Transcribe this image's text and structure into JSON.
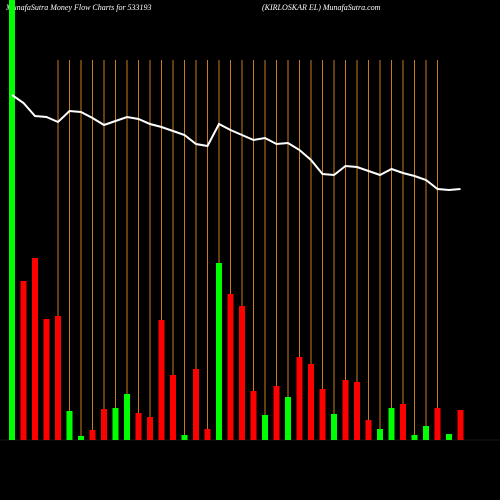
{
  "chart_data": {
    "type": "bar",
    "title": "MunafaSutra  Money Flow  Charts for 533193",
    "subtitle": "(KIRLOSKAR EL) MunafaSutra.com",
    "values": [
      440,
      159,
      182,
      121,
      124,
      29,
      4,
      10,
      31,
      32,
      46,
      27,
      23,
      120,
      65,
      5,
      71,
      11,
      177,
      146,
      134,
      49,
      25,
      54,
      43,
      83,
      76,
      51,
      26,
      60,
      58,
      20,
      11,
      32,
      36,
      5,
      14,
      32,
      6,
      30
    ],
    "colors": [
      "#00ff00",
      "#ff0000",
      "#ff0000",
      "#ff0000",
      "#ff0000",
      "#00ff00",
      "#00ff00",
      "#ff0000",
      "#ff0000",
      "#00ff00",
      "#00ff00",
      "#ff0000",
      "#ff0000",
      "#ff0000",
      "#ff0000",
      "#00ff00",
      "#ff0000",
      "#ff0000",
      "#00ff00",
      "#ff0000",
      "#ff0000",
      "#ff0000",
      "#00ff00",
      "#ff0000",
      "#00ff00",
      "#ff0000",
      "#ff0000",
      "#ff0000",
      "#00ff00",
      "#ff0000",
      "#ff0000",
      "#ff0000",
      "#00ff00",
      "#00ff00",
      "#ff0000",
      "#00ff00",
      "#00ff00",
      "#ff0000",
      "#00ff00",
      "#ff0000"
    ],
    "line_values": [
      345,
      337,
      324,
      323,
      318,
      329,
      328,
      322,
      315,
      319,
      323,
      321,
      316,
      313,
      309,
      305,
      296,
      294,
      316,
      310,
      305,
      300,
      302,
      296,
      297,
      290,
      280,
      266,
      265,
      274,
      273,
      269,
      265,
      271,
      267,
      264,
      260,
      251,
      250,
      251
    ],
    "line_color": "#ffffff",
    "grid_color": "#c87a1e",
    "ylim": [
      0,
      440
    ],
    "grid": true
  }
}
